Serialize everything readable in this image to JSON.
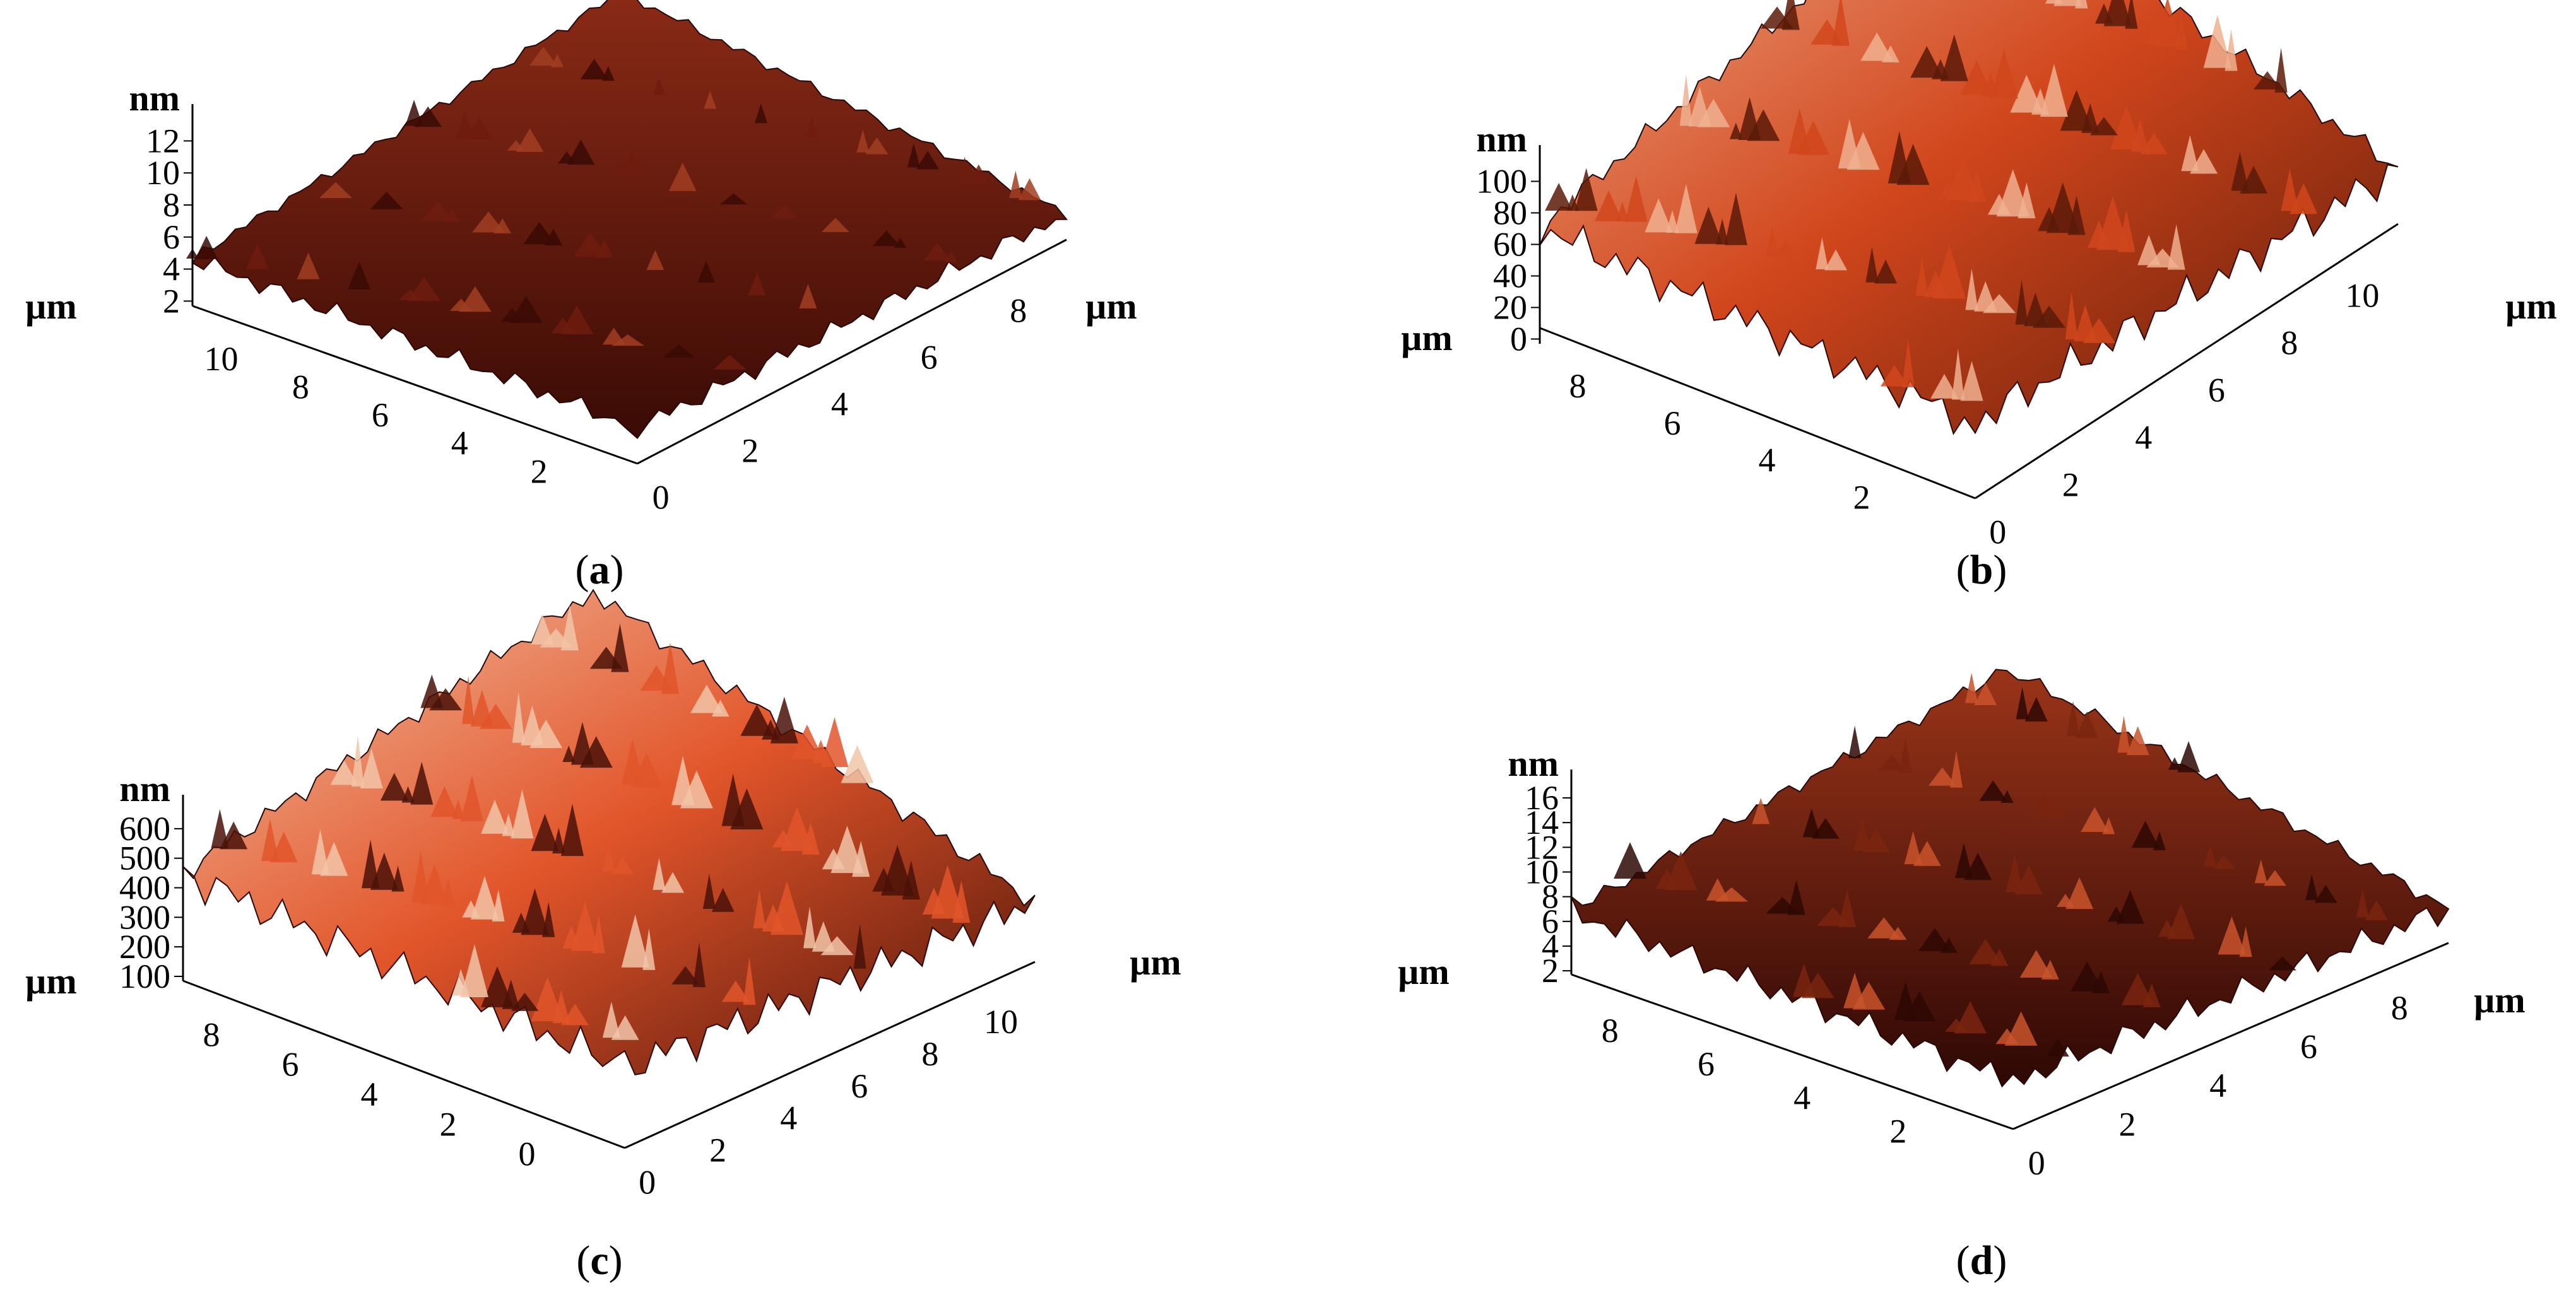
{
  "chart_data": [
    {
      "type": "surface",
      "caption": "a",
      "z_unit": "nm",
      "x_unit": "µm",
      "y_unit": "µm",
      "z_ticks": [
        "2",
        "4",
        "6",
        "8",
        "10",
        "12"
      ],
      "x_ticks": [
        "0",
        "2",
        "4",
        "6",
        "8"
      ],
      "y_ticks": [
        "2",
        "4",
        "6",
        "8",
        "10"
      ],
      "zlim": [
        2,
        14
      ],
      "xlim": [
        0,
        10
      ],
      "ylim": [
        0,
        10
      ],
      "roughness": "low",
      "color_map": [
        "#3a0b05",
        "#6e1c0e",
        "#a13e22"
      ]
    },
    {
      "type": "surface",
      "caption": "b",
      "z_unit": "nm",
      "x_unit": "µm",
      "y_unit": "µm",
      "z_ticks": [
        "0",
        "20",
        "40",
        "60",
        "80",
        "100"
      ],
      "x_ticks": [
        "0",
        "2",
        "4",
        "6",
        "8",
        "10"
      ],
      "y_ticks": [
        "2",
        "4",
        "6",
        "8"
      ],
      "zlim": [
        0,
        120
      ],
      "xlim": [
        0,
        10
      ],
      "ylim": [
        0,
        10
      ],
      "roughness": "high",
      "color_map": [
        "#5a1a08",
        "#d1461c",
        "#f0b08f"
      ]
    },
    {
      "type": "surface",
      "caption": "c",
      "z_unit": "nm",
      "x_unit": "µm",
      "y_unit": "µm",
      "z_ticks": [
        "100",
        "200",
        "300",
        "400",
        "500",
        "600"
      ],
      "x_ticks": [
        "0",
        "2",
        "4",
        "6",
        "8",
        "10"
      ],
      "y_ticks": [
        "0",
        "2",
        "4",
        "6",
        "8"
      ],
      "zlim": [
        100,
        700
      ],
      "xlim": [
        0,
        10
      ],
      "ylim": [
        0,
        10
      ],
      "roughness": "high",
      "color_map": [
        "#4a1208",
        "#e2552a",
        "#f2c4a8"
      ]
    },
    {
      "type": "surface",
      "caption": "d",
      "z_unit": "nm",
      "x_unit": "µm",
      "y_unit": "µm",
      "z_ticks": [
        "2",
        "4",
        "6",
        "8",
        "10",
        "12",
        "14",
        "16"
      ],
      "x_ticks": [
        "0",
        "2",
        "4",
        "6",
        "8"
      ],
      "y_ticks": [
        "2",
        "4",
        "6",
        "8"
      ],
      "zlim": [
        2,
        18
      ],
      "xlim": [
        0,
        10
      ],
      "ylim": [
        0,
        10
      ],
      "roughness": "medium",
      "color_map": [
        "#2e0804",
        "#7a240f",
        "#c9542c"
      ]
    }
  ]
}
